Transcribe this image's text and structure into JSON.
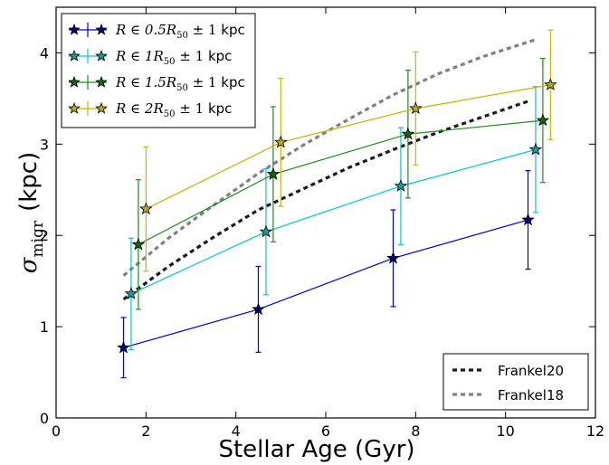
{
  "chart_data": {
    "type": "line",
    "xlabel": "Stellar Age (Gyr)",
    "ylabel_symbol": "σ",
    "ylabel_subscript": "migr",
    "ylabel_unit": "(kpc)",
    "xlim": [
      0,
      12
    ],
    "ylim": [
      0,
      4.5
    ],
    "xticks": [
      "0",
      "2",
      "4",
      "6",
      "8",
      "10",
      "12"
    ],
    "yticks": [
      "0",
      "1",
      "2",
      "3",
      "4"
    ],
    "grid": false,
    "series": [
      {
        "name": "R ∈ 0.5R₅₀ ± 1 kpc",
        "legend_math": "R ∈ 0.5R",
        "legend_sub": "50",
        "legend_pm": "± 1",
        "legend_unit": "kpc",
        "color": "#0000cc",
        "marker_fill": "#00007f",
        "x": [
          1.5,
          4.5,
          7.5,
          10.5
        ],
        "y": [
          0.77,
          1.19,
          1.75,
          2.17
        ],
        "yerr": [
          0.33,
          0.47,
          0.53,
          0.54
        ]
      },
      {
        "name": "R ∈ 1R₅₀ ± 1 kpc",
        "legend_math": "R ∈ 1R",
        "legend_sub": "50",
        "legend_pm": "± 1",
        "legend_unit": "kpc",
        "color": "#00c8c8",
        "marker_fill": "#1a9a9a",
        "x": [
          1.67,
          4.67,
          7.67,
          10.67
        ],
        "y": [
          1.36,
          2.04,
          2.54,
          2.94
        ],
        "yerr": [
          0.61,
          0.69,
          0.64,
          0.69
        ]
      },
      {
        "name": "R ∈ 1.5R₅₀ ± 1 kpc",
        "legend_math": "R ∈ 1.5R",
        "legend_sub": "50",
        "legend_pm": "± 1",
        "legend_unit": "kpc",
        "color": "#1e8c1e",
        "marker_fill": "#0a6a0a",
        "x": [
          1.83,
          4.83,
          7.83,
          10.83
        ],
        "y": [
          1.9,
          2.67,
          3.11,
          3.26
        ],
        "yerr": [
          0.71,
          0.74,
          0.7,
          0.68
        ]
      },
      {
        "name": "R ∈ 2R₅₀ ± 1 kpc",
        "legend_math": "R ∈ 2R",
        "legend_sub": "50",
        "legend_pm": "± 1",
        "legend_unit": "kpc",
        "color": "#c8b400",
        "marker_fill": "#b4aa1e",
        "x": [
          2.0,
          5.0,
          8.0,
          11.0
        ],
        "y": [
          2.29,
          3.02,
          3.39,
          3.65
        ],
        "yerr": [
          0.68,
          0.7,
          0.62,
          0.6
        ]
      }
    ],
    "reference_lines": [
      {
        "name": "Frankel20",
        "color": "#1a1a1a",
        "x": [
          1.5,
          2.5,
          3.5,
          4.5,
          5.5,
          6.5,
          7.5,
          8.5,
          9.5,
          10.5
        ],
        "y": [
          1.3,
          1.66,
          1.98,
          2.28,
          2.51,
          2.74,
          2.94,
          3.13,
          3.3,
          3.47
        ]
      },
      {
        "name": "Frankel18",
        "color": "#808080",
        "x": [
          1.5,
          2.5,
          3.5,
          4.5,
          5.5,
          6.5,
          7.5,
          8.5,
          9.5,
          10.7
        ],
        "y": [
          1.56,
          1.97,
          2.33,
          2.68,
          2.99,
          3.27,
          3.54,
          3.77,
          3.96,
          4.15
        ]
      }
    ],
    "legends": {
      "series_legend_placement": "top-left",
      "reference_legend_placement": "bottom-right"
    }
  }
}
